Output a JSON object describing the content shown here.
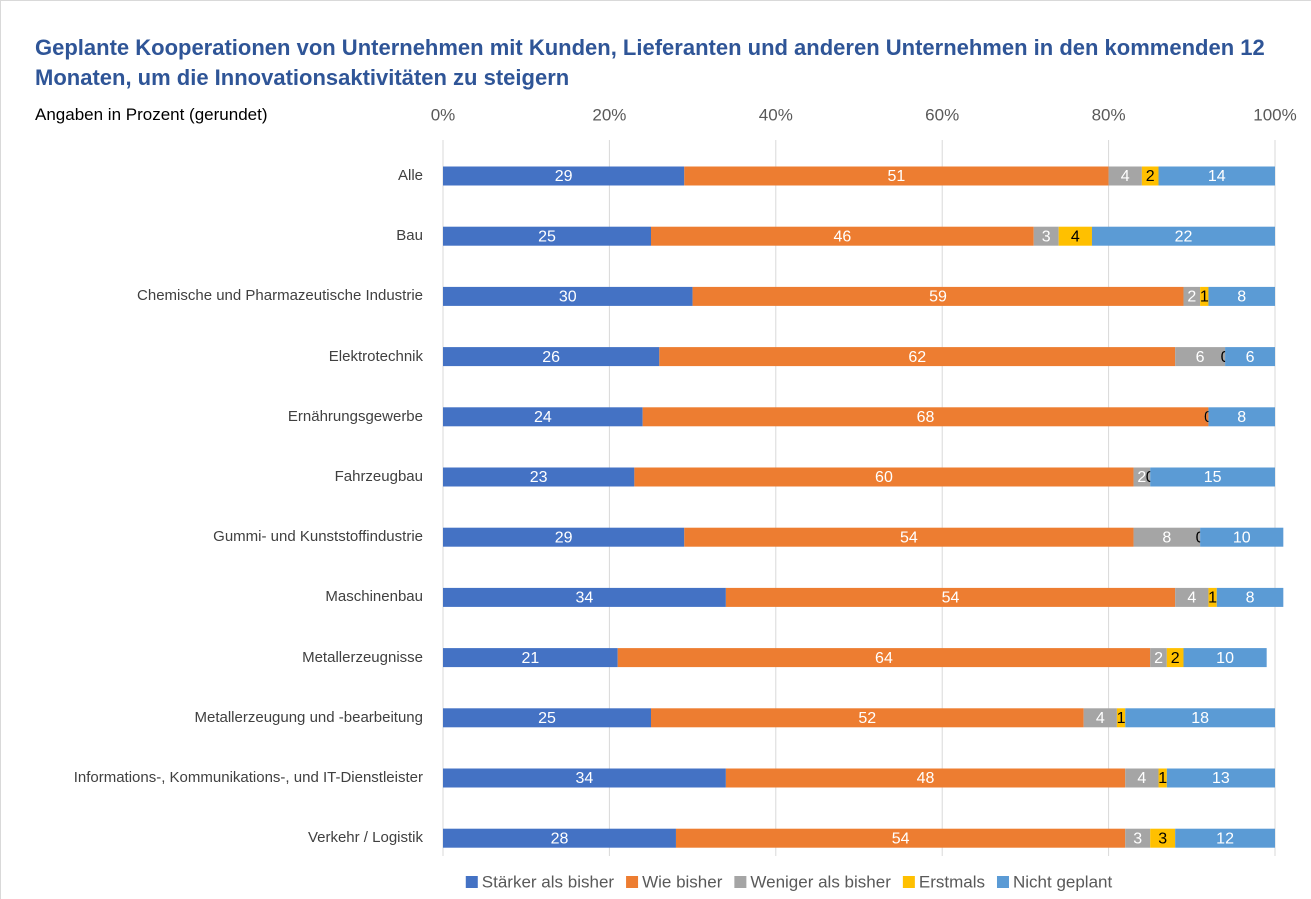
{
  "chart_data": {
    "type": "stacked_bar_horizontal",
    "title": "Geplante Kooperationen von Unternehmen mit Kunden, Lieferanten und anderen Unternehmen in den kommenden 12 Monaten, um die Innovationsaktivitäten zu steigern",
    "subtitle": "Angaben in Prozent (gerundet)",
    "categories": [
      "Alle",
      "Bau",
      "Chemische und Pharmazeutische Industrie",
      "Elektrotechnik",
      "Ernährungsgewerbe",
      "Fahrzeugbau",
      "Gummi- und Kunststoffindustrie",
      "Maschinenbau",
      "Metallerzeugnisse",
      "Metallerzeugung und -bearbeitung",
      "Informations-, Kommunikations-, und IT-Dienstleister",
      "Verkehr / Logistik"
    ],
    "series": [
      {
        "name": "Stärker als bisher",
        "color": "#4472C4",
        "values": [
          29,
          25,
          30,
          26,
          24,
          23,
          29,
          34,
          21,
          25,
          34,
          28
        ]
      },
      {
        "name": "Wie bisher",
        "color": "#ED7D31",
        "values": [
          51,
          46,
          59,
          62,
          68,
          60,
          54,
          54,
          64,
          52,
          48,
          54
        ]
      },
      {
        "name": "Weniger als bisher",
        "color": "#A5A5A5",
        "values": [
          4,
          3,
          2,
          6,
          0,
          2,
          8,
          4,
          2,
          4,
          4,
          3
        ]
      },
      {
        "name": "Erstmals",
        "color": "#FFC000",
        "values": [
          2,
          4,
          1,
          0,
          0,
          0,
          0,
          1,
          2,
          1,
          1,
          3
        ]
      },
      {
        "name": "Nicht geplant",
        "color": "#5B9BD5",
        "values": [
          14,
          22,
          8,
          6,
          8,
          15,
          10,
          8,
          10,
          18,
          13,
          12
        ]
      }
    ],
    "xlim": [
      0,
      100
    ],
    "xticks": [
      {
        "value": 0,
        "label": "0%"
      },
      {
        "value": 20,
        "label": "20%"
      },
      {
        "value": 40,
        "label": "40%"
      },
      {
        "value": 60,
        "label": "60%"
      },
      {
        "value": 80,
        "label": "80%"
      },
      {
        "value": 100,
        "label": "100%"
      }
    ],
    "grid": true,
    "legend": "bottom"
  }
}
